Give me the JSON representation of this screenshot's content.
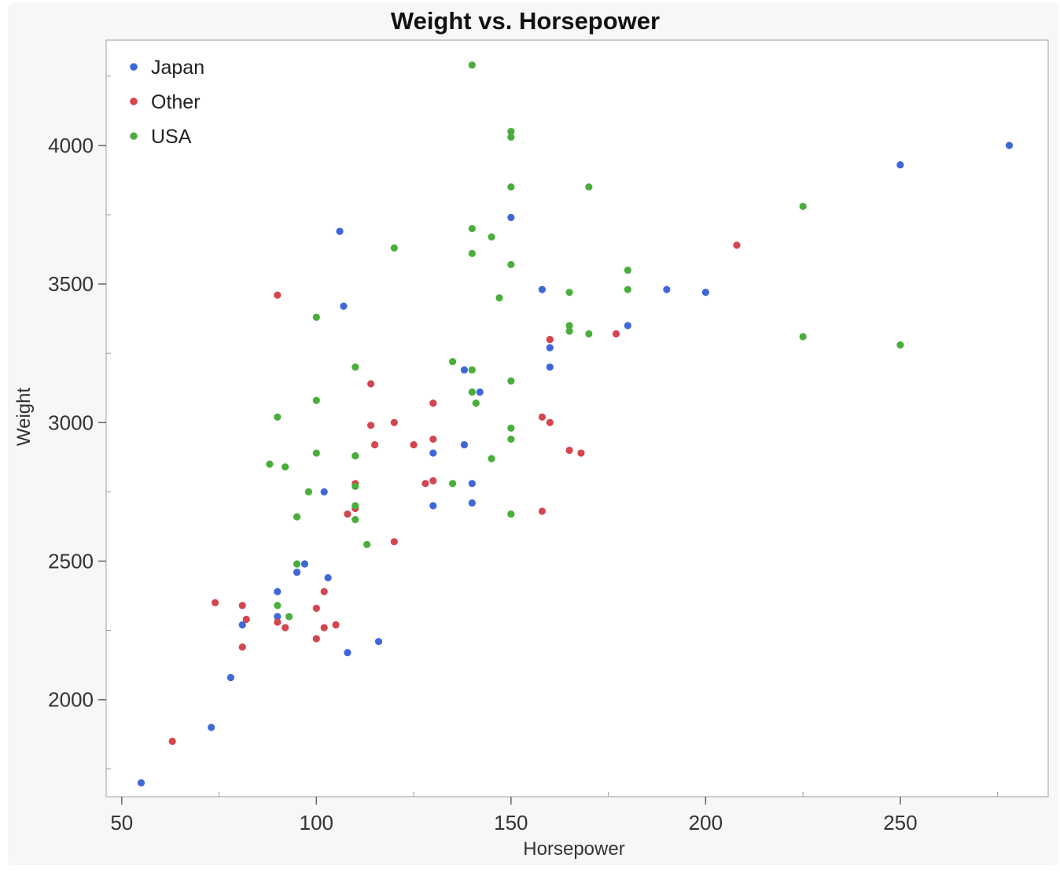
{
  "chart_data": {
    "type": "scatter",
    "title": "Weight vs. Horsepower",
    "xlabel": "Horsepower",
    "ylabel": "Weight",
    "xlim": [
      46,
      288
    ],
    "ylim": [
      1650,
      4380
    ],
    "xticks": [
      50,
      100,
      150,
      200,
      250
    ],
    "yticks": [
      2000,
      2500,
      3000,
      3500,
      4000
    ],
    "legend_position": "top-left",
    "grid": false,
    "series": [
      {
        "name": "Japan",
        "color": "#3f67d8",
        "points": [
          [
            55,
            1700
          ],
          [
            73,
            1900
          ],
          [
            78,
            2080
          ],
          [
            81,
            2270
          ],
          [
            90,
            2300
          ],
          [
            90,
            2390
          ],
          [
            95,
            2460
          ],
          [
            97,
            2490
          ],
          [
            102,
            2750
          ],
          [
            103,
            2440
          ],
          [
            106,
            3690
          ],
          [
            107,
            3420
          ],
          [
            108,
            2170
          ],
          [
            116,
            2210
          ],
          [
            130,
            2890
          ],
          [
            130,
            2700
          ],
          [
            138,
            3190
          ],
          [
            138,
            2920
          ],
          [
            140,
            2780
          ],
          [
            140,
            2710
          ],
          [
            142,
            3110
          ],
          [
            150,
            3740
          ],
          [
            158,
            3480
          ],
          [
            160,
            3270
          ],
          [
            160,
            3200
          ],
          [
            180,
            3350
          ],
          [
            190,
            3480
          ],
          [
            200,
            3470
          ],
          [
            250,
            3930
          ],
          [
            278,
            4000
          ]
        ]
      },
      {
        "name": "Other",
        "color": "#d4464f",
        "points": [
          [
            63,
            1850
          ],
          [
            74,
            2350
          ],
          [
            81,
            2340
          ],
          [
            81,
            2190
          ],
          [
            82,
            2290
          ],
          [
            90,
            2280
          ],
          [
            90,
            3460
          ],
          [
            92,
            2260
          ],
          [
            100,
            2220
          ],
          [
            100,
            2330
          ],
          [
            102,
            2390
          ],
          [
            102,
            2260
          ],
          [
            105,
            2270
          ],
          [
            108,
            2670
          ],
          [
            110,
            2880
          ],
          [
            110,
            2780
          ],
          [
            110,
            2690
          ],
          [
            114,
            3140
          ],
          [
            114,
            2990
          ],
          [
            115,
            2920
          ],
          [
            120,
            3000
          ],
          [
            120,
            2570
          ],
          [
            125,
            2920
          ],
          [
            128,
            2780
          ],
          [
            130,
            3070
          ],
          [
            130,
            2940
          ],
          [
            130,
            2790
          ],
          [
            158,
            3020
          ],
          [
            158,
            2680
          ],
          [
            160,
            3000
          ],
          [
            160,
            3300
          ],
          [
            165,
            2900
          ],
          [
            168,
            2890
          ],
          [
            177,
            3320
          ],
          [
            208,
            3640
          ]
        ]
      },
      {
        "name": "USA",
        "color": "#4aae3c",
        "points": [
          [
            88,
            2850
          ],
          [
            90,
            3020
          ],
          [
            90,
            2340
          ],
          [
            92,
            2840
          ],
          [
            93,
            2300
          ],
          [
            95,
            2660
          ],
          [
            95,
            2490
          ],
          [
            98,
            2750
          ],
          [
            100,
            3380
          ],
          [
            100,
            3080
          ],
          [
            100,
            2890
          ],
          [
            110,
            3200
          ],
          [
            110,
            2880
          ],
          [
            110,
            2770
          ],
          [
            110,
            2700
          ],
          [
            110,
            2650
          ],
          [
            113,
            2560
          ],
          [
            120,
            3630
          ],
          [
            135,
            3220
          ],
          [
            135,
            2780
          ],
          [
            140,
            4290
          ],
          [
            140,
            3700
          ],
          [
            140,
            3610
          ],
          [
            140,
            3190
          ],
          [
            140,
            3110
          ],
          [
            141,
            3070
          ],
          [
            145,
            3670
          ],
          [
            145,
            2870
          ],
          [
            147,
            3450
          ],
          [
            150,
            4050
          ],
          [
            150,
            4030
          ],
          [
            150,
            3850
          ],
          [
            150,
            3570
          ],
          [
            150,
            3150
          ],
          [
            150,
            2980
          ],
          [
            150,
            2940
          ],
          [
            150,
            2670
          ],
          [
            165,
            3470
          ],
          [
            165,
            3350
          ],
          [
            165,
            3330
          ],
          [
            170,
            3850
          ],
          [
            170,
            3320
          ],
          [
            180,
            3550
          ],
          [
            180,
            3480
          ],
          [
            225,
            3780
          ],
          [
            225,
            3310
          ],
          [
            250,
            3280
          ]
        ]
      }
    ]
  }
}
